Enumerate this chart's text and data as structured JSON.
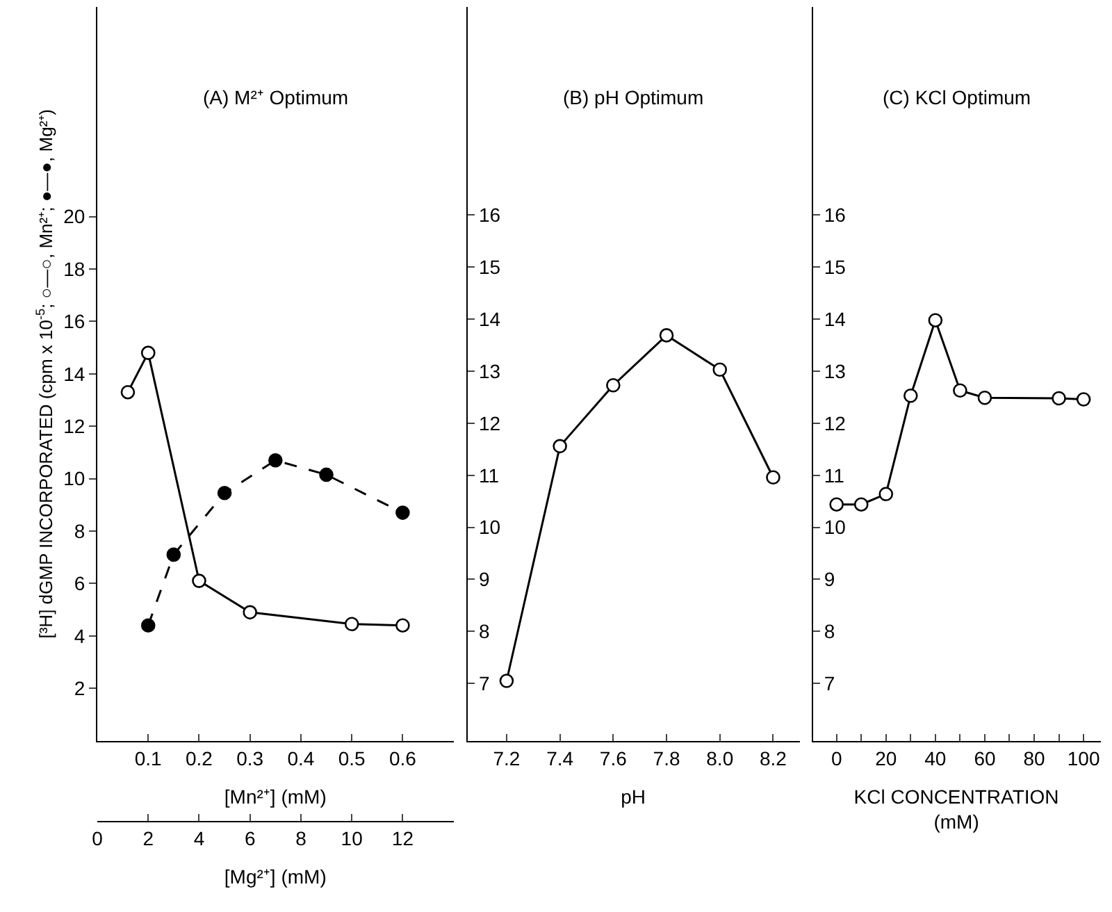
{
  "chart_data": [
    {
      "type": "line",
      "title": "(A) M²⁺ Optimum",
      "xlabel": "[Mn²⁺] (mM)",
      "x2label": "[Mg²⁺] (mM)",
      "ylabel": "[³H] dGMP INCORPORATED (cpm x 10$^{-5}$; ○—○, Mn²⁺; ●—●, Mg²⁺)",
      "xlim": [
        0,
        0.7
      ],
      "xticks": [
        0.1,
        0.2,
        0.3,
        0.4,
        0.5,
        0.6
      ],
      "x2lim": [
        0,
        14
      ],
      "x2ticks": [
        0,
        2,
        4,
        6,
        8,
        10,
        12
      ],
      "ylim": [
        0,
        28
      ],
      "yticks": [
        2,
        4,
        6,
        8,
        10,
        12,
        14,
        16,
        18,
        20
      ],
      "series": [
        {
          "color": "#000000",
          "marker": "circle-open",
          "line_style": "solid",
          "x": [
            0.06,
            0.1,
            0.2,
            0.3,
            0.5,
            0.6
          ],
          "values": [
            13.3,
            14.8,
            6.1,
            4.9,
            4.45,
            4.4
          ]
        },
        {
          "color": "#000000",
          "marker": "circle",
          "line_style": "dashed",
          "axis": "x2",
          "x": [
            2,
            3,
            5,
            7,
            9,
            12
          ],
          "values": [
            4.4,
            7.1,
            9.45,
            10.7,
            10.15,
            8.7
          ]
        }
      ]
    },
    {
      "type": "line",
      "title": "(B) pH Optimum",
      "xlabel": "pH",
      "xlim": [
        7.05,
        8.3
      ],
      "xticks": [
        7.2,
        7.4,
        7.6,
        7.8,
        {
          "value": 8.0,
          "label": "8.0"
        },
        8.2
      ],
      "ylim": [
        5.9,
        20
      ],
      "yticks": [
        7,
        8,
        9,
        10,
        11,
        12,
        13,
        14,
        15,
        16
      ],
      "series": [
        {
          "color": "#000000",
          "marker": "circle-open",
          "line_style": "solid",
          "x": [
            7.2,
            7.4,
            7.6,
            7.8,
            8.0,
            8.2
          ],
          "values": [
            7.05,
            11.56,
            12.73,
            13.69,
            13.03,
            10.96
          ]
        }
      ]
    },
    {
      "type": "line",
      "title": "(C) KCl Optimum",
      "xlabel": "KCl CONCENTRATION\n(mM)",
      "xlim": [
        -10,
        107
      ],
      "xticks": [
        0,
        {
          "value": 10,
          "label": null
        },
        20,
        {
          "value": 30,
          "label": null
        },
        40,
        {
          "value": 50,
          "label": null
        },
        60,
        {
          "value": 70,
          "label": null
        },
        80,
        {
          "value": 90,
          "label": null
        },
        100
      ],
      "ylim": [
        5.9,
        20
      ],
      "yticks": [
        7,
        8,
        9,
        10,
        11,
        12,
        13,
        14,
        15,
        16
      ],
      "series": [
        {
          "color": "#000000",
          "marker": "circle-open",
          "line_style": "solid",
          "x": [
            0,
            10,
            20,
            30,
            40,
            50,
            60,
            90,
            100
          ],
          "values": [
            10.44,
            10.44,
            10.64,
            12.53,
            13.98,
            12.63,
            12.49,
            12.48,
            12.46
          ]
        }
      ]
    }
  ]
}
